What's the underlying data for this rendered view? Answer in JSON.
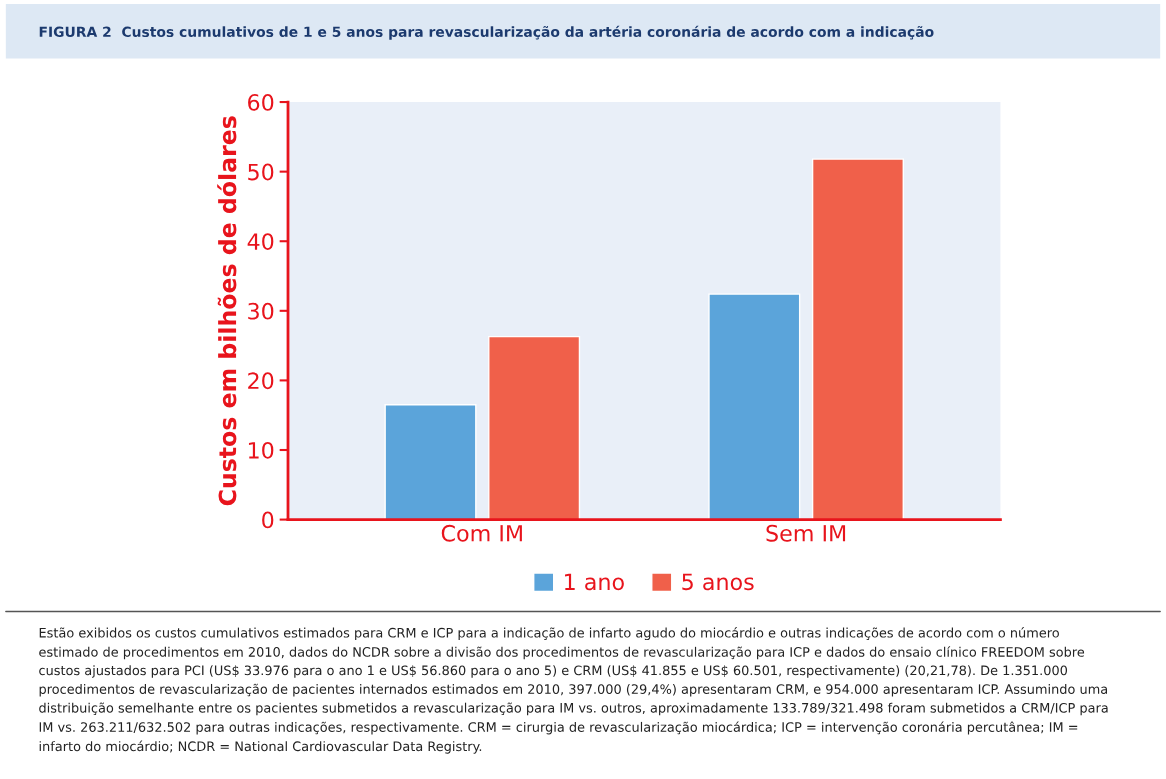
{
  "chart_data": {
    "type": "bar",
    "title": "FIGURA 2  Custos cumulativos de 1 e 5 anos para revascularização da artéria coronária de acordo com a indicação",
    "ylabel": "Custos em bilhões de dólares",
    "categories": [
      "Com IM",
      "Sem IM"
    ],
    "series": [
      {
        "name": "1 ano",
        "color": "#5ba4da",
        "values": [
          16.5,
          32.4
        ]
      },
      {
        "name": "5 anos",
        "color": "#f0604a",
        "values": [
          26.3,
          51.8
        ]
      }
    ],
    "ylim": [
      0,
      60
    ],
    "yticks": [
      0,
      10,
      20,
      30,
      40,
      50,
      60
    ],
    "grid": false,
    "legend": "bottom",
    "annotations": [
      "Estão exibidos os custos cumulativos estimados para CRM e ICP para a indicação de infarto agudo do miocárdio e outras indicações de acordo com o número estimado de procedimentos em 2010, dados do NCDR sobre a divisão dos procedimentos de revascularização para ICP e dados do ensaio clínico FREEDOM sobre custos ajustados para PCI (US$ 33.976 para o ano 1 e US$ 56.860 para o ano 5) e CRM (US$ 41.855 e US$ 60.501, respectivamente) (20,21,78). De 1.351.000 procedimentos de revascularização de pacientes internados estimados em 2010, 397.000 (29,4%) apresentaram CRM, e 954.000 apresentaram ICP. Assumindo uma distribuição semelhante entre os pacientes submetidos a revascularização para IM vs. outros, aproximadamente 133.789/321.498 foram submetidos a CRM/ICP para IM vs. 263.211/632.502 para outras indicações, respectivamente. CRM = cirurgia de revascularização miocárdica; ICP = intervenção coronária percutânea; IM = infarto do miocárdio; NCDR = National Cardiovascular Data Registry."
    ]
  }
}
